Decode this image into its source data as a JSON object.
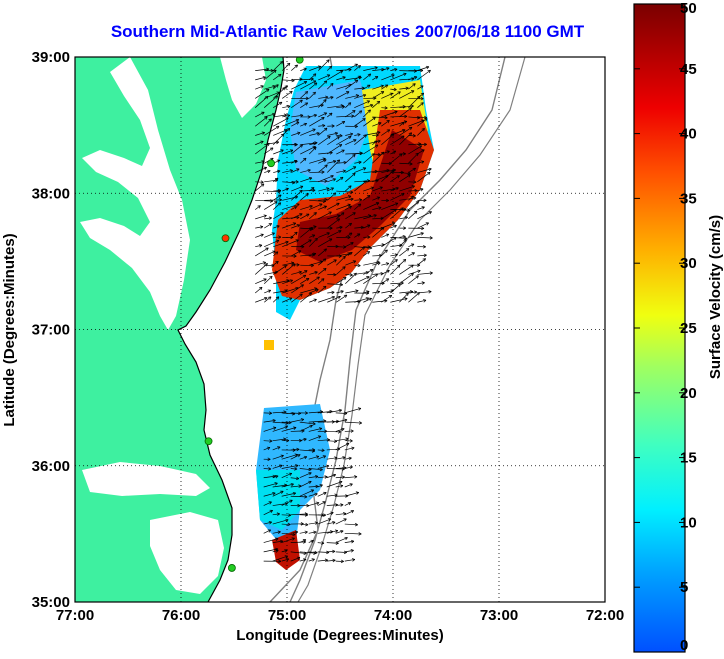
{
  "title": "Southern Mid-Atlantic Raw Velocities 2007/06/18 1100 GMT",
  "xlabel": "Longitude (Degrees:Minutes)",
  "ylabel": "Latitude (Degrees:Minutes)",
  "colorbar_label": "Surface Velocity (cm/s)",
  "x_ticks": [
    {
      "value": -77,
      "label": "77:00"
    },
    {
      "value": -76,
      "label": "76:00"
    },
    {
      "value": -75,
      "label": "75:00"
    },
    {
      "value": -74,
      "label": "74:00"
    },
    {
      "value": -73,
      "label": "73:00"
    },
    {
      "value": -72,
      "label": "72:00"
    }
  ],
  "y_ticks": [
    {
      "value": 39,
      "label": "39:00"
    },
    {
      "value": 38,
      "label": "38:00"
    },
    {
      "value": 37,
      "label": "37:00"
    },
    {
      "value": 36,
      "label": "36:00"
    },
    {
      "value": 35,
      "label": "35:00"
    }
  ],
  "colorbar": {
    "min": 0,
    "max": 50,
    "ticks": [
      "0",
      "5",
      "10",
      "15",
      "20",
      "25",
      "30",
      "35",
      "40",
      "45",
      "50"
    ]
  },
  "map_extent": {
    "lon": [
      -77,
      -72
    ],
    "lat": [
      35,
      39
    ]
  },
  "colors": {
    "land": "#3ef0a0",
    "title": "#0000ff",
    "bathymetry": "#808080",
    "station": "#22cc22",
    "station_alt": "#ff3300"
  },
  "stations": [
    {
      "lon": -74.88,
      "lat": 38.98
    },
    {
      "lon": -75.15,
      "lat": 38.22
    },
    {
      "lon": -75.58,
      "lat": 37.67
    },
    {
      "lon": -75.74,
      "lat": 36.18
    },
    {
      "lon": -75.52,
      "lat": 35.25
    }
  ],
  "velocity_regions": [
    {
      "name": "northern-field",
      "lon": [
        -75.3,
        -73.75
      ],
      "lat": [
        37.2,
        38.92
      ]
    },
    {
      "name": "southern-field",
      "lon": [
        -75.22,
        -74.45
      ],
      "lat": [
        35.3,
        36.4
      ]
    }
  ]
}
